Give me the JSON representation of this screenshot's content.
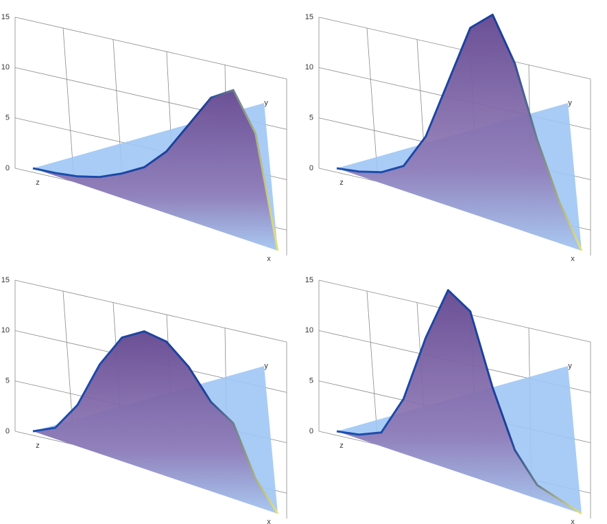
{
  "chart_data": [
    {
      "type": "surface",
      "x_label": "x",
      "y_label": "y",
      "z_label": "z",
      "zlim": [
        0,
        15
      ],
      "zticks": [
        0,
        5,
        10,
        15
      ],
      "values": [
        0,
        0.2,
        0.5,
        1,
        1.8,
        2.8,
        4.5,
        7,
        9.5,
        10.6,
        8,
        0
      ]
    },
    {
      "type": "surface",
      "x_label": "x",
      "y_label": "y",
      "z_label": "z",
      "zlim": [
        0,
        15
      ],
      "zticks": [
        0,
        5,
        10,
        15
      ],
      "values": [
        0,
        0.3,
        0.8,
        1.8,
        4.5,
        9,
        13.5,
        15,
        12,
        7,
        3,
        0
      ]
    },
    {
      "type": "surface",
      "x_label": "x",
      "y_label": "y",
      "z_label": "z",
      "zlim": [
        0,
        15
      ],
      "zticks": [
        0,
        5,
        10,
        15
      ],
      "values": [
        0,
        0.8,
        3,
        6.5,
        9,
        10,
        9.8,
        8.5,
        6.5,
        5.5,
        2,
        0
      ]
    },
    {
      "type": "surface",
      "x_label": "x",
      "y_label": "y",
      "z_label": "z",
      "zlim": [
        0,
        15
      ],
      "zticks": [
        0,
        5,
        10,
        15
      ],
      "values": [
        0,
        0.3,
        1,
        4,
        9,
        13,
        12,
        7,
        3,
        1,
        0.5,
        0
      ]
    }
  ]
}
